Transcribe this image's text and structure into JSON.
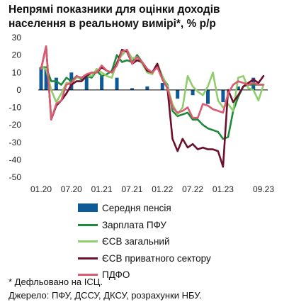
{
  "title_lines": [
    "Непрямі показники для оцінки доходів",
    "населення в реальному вимірі*, % р/р"
  ],
  "footnote": "* Дефльовано на ІСЦ.",
  "source": "Джерело: ПФУ, ДССУ, ДКСУ, розрахунки НБУ.",
  "chart_data": {
    "type": "line",
    "title": "Непрямі показники для оцінки доходів населення в реальному вимірі*, % р/р",
    "xlabel": "",
    "ylabel": "",
    "x": [
      "01.20",
      "02.20",
      "03.20",
      "04.20",
      "05.20",
      "06.20",
      "07.20",
      "08.20",
      "09.20",
      "10.20",
      "11.20",
      "12.20",
      "01.21",
      "02.21",
      "03.21",
      "04.21",
      "05.21",
      "06.21",
      "07.21",
      "08.21",
      "09.21",
      "10.21",
      "11.21",
      "12.21",
      "01.22",
      "02.22",
      "03.22",
      "04.22",
      "05.22",
      "06.22",
      "07.22",
      "08.22",
      "09.22",
      "10.22",
      "11.22",
      "12.22",
      "01.23",
      "02.23",
      "03.23",
      "04.23",
      "05.23",
      "06.23",
      "07.23",
      "08.23",
      "09.23"
    ],
    "x_tick_labels": [
      "01.20",
      "07.20",
      "01.21",
      "07.21",
      "01.22",
      "07.22",
      "01.23",
      "09.23"
    ],
    "y_ticks": [
      -50,
      -40,
      -30,
      -20,
      -10,
      0,
      10,
      20,
      30
    ],
    "ylim": [
      -50,
      30
    ],
    "grid": false,
    "legend_position": "bottom",
    "colors": {
      "Середня пенсія": "#0e5a96",
      "Зарплата ПФУ": "#1f8a3c",
      "ЄСВ загальний": "#8fce6c",
      "ЄСВ приватного сектору": "#6b0f2a",
      "ПДФО": "#d95b72"
    },
    "bars": {
      "name": "Середня пенсія",
      "values": [
        13,
        13,
        null,
        7,
        null,
        null,
        10,
        null,
        null,
        9,
        null,
        null,
        8,
        null,
        null,
        7,
        null,
        null,
        1,
        null,
        null,
        2,
        null,
        null,
        4,
        null,
        null,
        -5,
        null,
        null,
        -3,
        null,
        null,
        -8,
        null,
        null,
        -7,
        null,
        null,
        2,
        null,
        null,
        7,
        null,
        null
      ]
    },
    "series": [
      {
        "name": "Зарплата ПФУ",
        "values": [
          13,
          13,
          5,
          5,
          3,
          7,
          5,
          8,
          6,
          8,
          7,
          11,
          8,
          9,
          11,
          20,
          16,
          17,
          16,
          20,
          16,
          12,
          10,
          14,
          7,
          3,
          -12,
          -15,
          -14,
          -13,
          -17,
          -17,
          -20,
          -22,
          -23,
          -24,
          -28,
          -27,
          -12,
          -4,
          2,
          3,
          3,
          3,
          3
        ]
      },
      {
        "name": "ЄСВ загальний",
        "values": [
          13,
          12,
          0,
          -7,
          -2,
          4,
          4,
          7,
          7,
          8,
          8,
          12,
          10,
          8,
          7,
          16,
          20,
          23,
          18,
          19,
          15,
          10,
          9,
          15,
          8,
          2,
          -8,
          -14,
          -10,
          8,
          2,
          -1,
          -3,
          2,
          10,
          -6,
          -10,
          -8,
          -12,
          7,
          8,
          1,
          0,
          -6,
          3
        ]
      },
      {
        "name": "ЄСВ приватного сектору",
        "values": [
          12,
          25,
          -17,
          -9,
          -6,
          -2,
          3,
          5,
          5,
          8,
          10,
          10,
          13,
          11,
          10,
          15,
          23,
          22,
          15,
          17,
          16,
          11,
          10,
          15,
          6,
          1,
          -28,
          -35,
          -28,
          -33,
          -31,
          -34,
          -33,
          -34,
          -34,
          -35,
          -44,
          0,
          -7,
          -3,
          2,
          4,
          6,
          4,
          8
        ]
      },
      {
        "name": "ПДФО",
        "values": [
          12,
          25,
          -17,
          -8,
          -6,
          3,
          4,
          8,
          7,
          9,
          10,
          10,
          14,
          11,
          10,
          14,
          22,
          23,
          15,
          19,
          16,
          12,
          10,
          13,
          6,
          1,
          -10,
          -13,
          -12,
          -10,
          -16,
          -16,
          -8,
          -9,
          -11,
          -12,
          -13,
          -2,
          3,
          5,
          4,
          3,
          4,
          3,
          3
        ]
      }
    ]
  }
}
